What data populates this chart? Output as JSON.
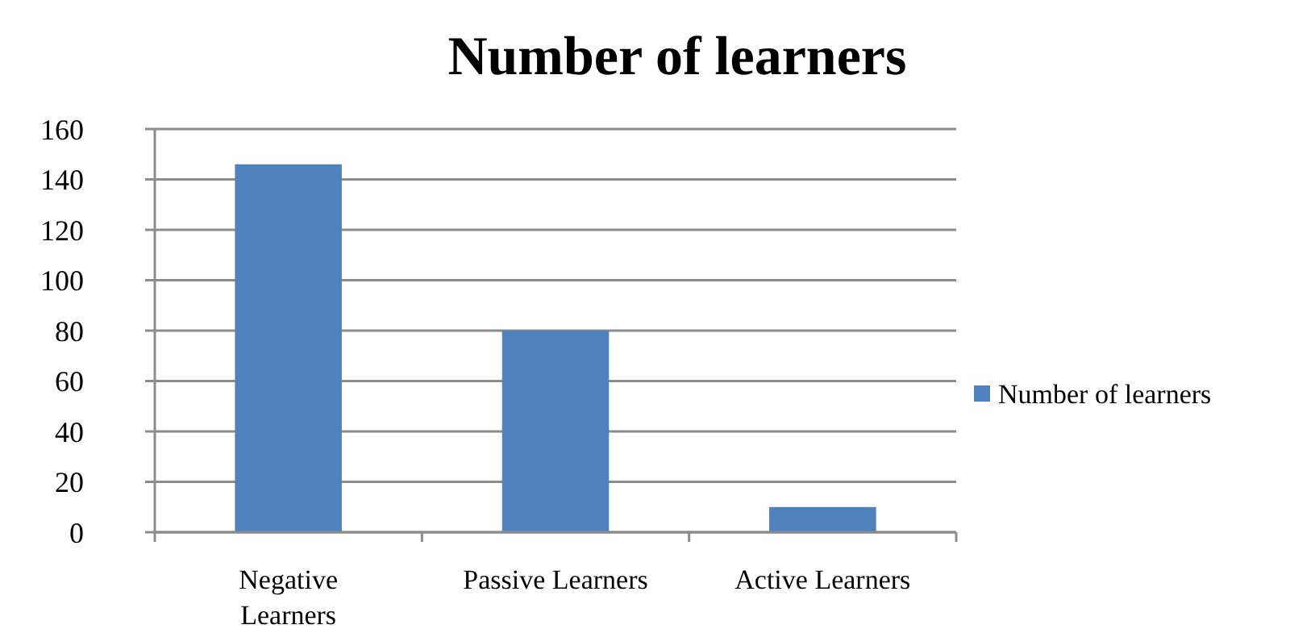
{
  "chart_data": {
    "type": "bar",
    "title": "Number of learners",
    "categories": [
      "Negative Learners",
      "Passive Learners",
      "Active Learners"
    ],
    "series": [
      {
        "name": "Number of learners",
        "color": "#4f81bd",
        "values": [
          146,
          80,
          10
        ]
      }
    ],
    "ylim": [
      0,
      160
    ],
    "yticks": [
      0,
      20,
      40,
      60,
      80,
      100,
      120,
      140,
      160
    ],
    "grid": "y",
    "legend": "right"
  }
}
